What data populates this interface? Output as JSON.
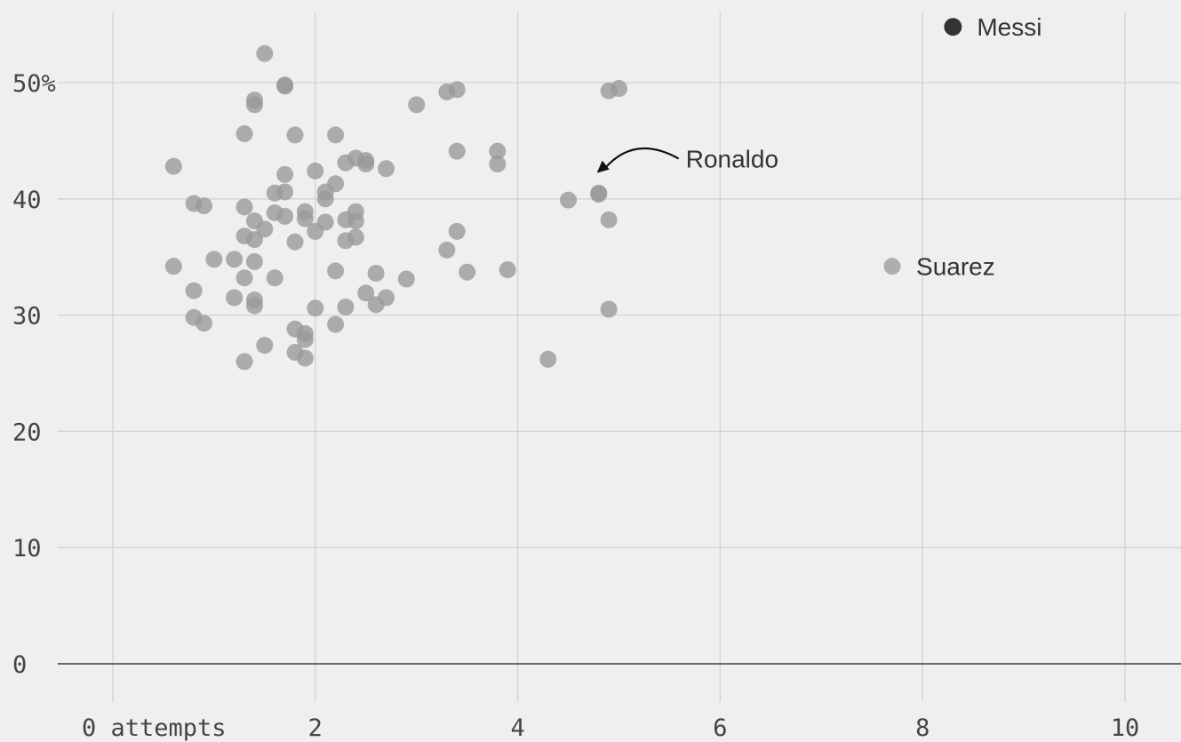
{
  "chart_data": {
    "type": "scatter",
    "title": "",
    "xlabel": "",
    "ylabel": "",
    "xlim": [
      -0.5,
      10.6
    ],
    "ylim": [
      -7,
      57
    ],
    "grid": true,
    "x_ticks": [
      {
        "value": 0,
        "label": "0 attempts"
      },
      {
        "value": 2,
        "label": "2"
      },
      {
        "value": 4,
        "label": "4"
      },
      {
        "value": 6,
        "label": "6"
      },
      {
        "value": 8,
        "label": "8"
      },
      {
        "value": 10,
        "label": "10"
      }
    ],
    "y_ticks": [
      {
        "value": 0,
        "label": "0"
      },
      {
        "value": 10,
        "label": "10"
      },
      {
        "value": 20,
        "label": "20"
      },
      {
        "value": 30,
        "label": "30"
      },
      {
        "value": 40,
        "label": "40"
      },
      {
        "value": 50,
        "label": "50%"
      }
    ],
    "highlighted": [
      {
        "name": "Messi",
        "x": 8.3,
        "y": 54.8,
        "color": "#333333"
      },
      {
        "name": "Ronaldo",
        "x": 4.8,
        "y": 40.4,
        "color": "#9a9a9a"
      },
      {
        "name": "Suarez",
        "x": 7.7,
        "y": 34.2,
        "color": "#a6a6a6"
      }
    ],
    "points": [
      {
        "x": 0.6,
        "y": 42.8
      },
      {
        "x": 0.6,
        "y": 34.2
      },
      {
        "x": 0.8,
        "y": 39.6
      },
      {
        "x": 0.9,
        "y": 39.4
      },
      {
        "x": 0.8,
        "y": 32.1
      },
      {
        "x": 0.8,
        "y": 29.8
      },
      {
        "x": 0.9,
        "y": 29.3
      },
      {
        "x": 1.0,
        "y": 34.8
      },
      {
        "x": 1.2,
        "y": 34.8
      },
      {
        "x": 1.2,
        "y": 31.5
      },
      {
        "x": 1.3,
        "y": 26.0
      },
      {
        "x": 1.3,
        "y": 33.2
      },
      {
        "x": 1.3,
        "y": 36.8
      },
      {
        "x": 1.3,
        "y": 39.3
      },
      {
        "x": 1.3,
        "y": 45.6
      },
      {
        "x": 1.4,
        "y": 48.1
      },
      {
        "x": 1.4,
        "y": 48.5
      },
      {
        "x": 1.5,
        "y": 52.5
      },
      {
        "x": 1.4,
        "y": 38.1
      },
      {
        "x": 1.4,
        "y": 36.5
      },
      {
        "x": 1.5,
        "y": 37.4
      },
      {
        "x": 1.4,
        "y": 34.6
      },
      {
        "x": 1.4,
        "y": 31.3
      },
      {
        "x": 1.4,
        "y": 30.8
      },
      {
        "x": 1.5,
        "y": 27.4
      },
      {
        "x": 1.6,
        "y": 33.2
      },
      {
        "x": 1.6,
        "y": 40.5
      },
      {
        "x": 1.7,
        "y": 42.1
      },
      {
        "x": 1.7,
        "y": 40.6
      },
      {
        "x": 1.6,
        "y": 38.8
      },
      {
        "x": 1.7,
        "y": 38.5
      },
      {
        "x": 1.7,
        "y": 49.7
      },
      {
        "x": 1.7,
        "y": 49.8
      },
      {
        "x": 1.8,
        "y": 45.5
      },
      {
        "x": 1.8,
        "y": 36.3
      },
      {
        "x": 1.8,
        "y": 28.8
      },
      {
        "x": 1.8,
        "y": 26.8
      },
      {
        "x": 1.9,
        "y": 28.4
      },
      {
        "x": 1.9,
        "y": 27.9
      },
      {
        "x": 1.9,
        "y": 38.3
      },
      {
        "x": 1.9,
        "y": 38.9
      },
      {
        "x": 2.0,
        "y": 37.2
      },
      {
        "x": 2.0,
        "y": 42.4
      },
      {
        "x": 2.0,
        "y": 30.6
      },
      {
        "x": 1.9,
        "y": 26.3
      },
      {
        "x": 2.1,
        "y": 40.0
      },
      {
        "x": 2.1,
        "y": 40.6
      },
      {
        "x": 2.2,
        "y": 41.3
      },
      {
        "x": 2.2,
        "y": 45.5
      },
      {
        "x": 2.1,
        "y": 38.0
      },
      {
        "x": 2.2,
        "y": 33.8
      },
      {
        "x": 2.2,
        "y": 29.2
      },
      {
        "x": 2.3,
        "y": 38.2
      },
      {
        "x": 2.3,
        "y": 43.1
      },
      {
        "x": 2.3,
        "y": 36.4
      },
      {
        "x": 2.4,
        "y": 36.7
      },
      {
        "x": 2.4,
        "y": 38.9
      },
      {
        "x": 2.4,
        "y": 38.1
      },
      {
        "x": 2.4,
        "y": 43.5
      },
      {
        "x": 2.5,
        "y": 43.3
      },
      {
        "x": 2.5,
        "y": 43.0
      },
      {
        "x": 2.7,
        "y": 42.6
      },
      {
        "x": 2.3,
        "y": 30.7
      },
      {
        "x": 2.5,
        "y": 31.9
      },
      {
        "x": 2.6,
        "y": 33.6
      },
      {
        "x": 2.6,
        "y": 30.9
      },
      {
        "x": 2.7,
        "y": 31.5
      },
      {
        "x": 2.9,
        "y": 33.1
      },
      {
        "x": 3.0,
        "y": 48.1
      },
      {
        "x": 3.3,
        "y": 49.2
      },
      {
        "x": 3.4,
        "y": 49.4
      },
      {
        "x": 3.4,
        "y": 44.1
      },
      {
        "x": 3.4,
        "y": 37.2
      },
      {
        "x": 3.3,
        "y": 35.6
      },
      {
        "x": 3.5,
        "y": 33.7
      },
      {
        "x": 3.8,
        "y": 44.1
      },
      {
        "x": 3.8,
        "y": 43.0
      },
      {
        "x": 3.9,
        "y": 33.9
      },
      {
        "x": 4.3,
        "y": 26.2
      },
      {
        "x": 4.5,
        "y": 39.9
      },
      {
        "x": 4.8,
        "y": 40.5
      },
      {
        "x": 4.9,
        "y": 38.2
      },
      {
        "x": 4.9,
        "y": 30.5
      },
      {
        "x": 4.9,
        "y": 49.3
      },
      {
        "x": 5.0,
        "y": 49.5
      }
    ]
  }
}
